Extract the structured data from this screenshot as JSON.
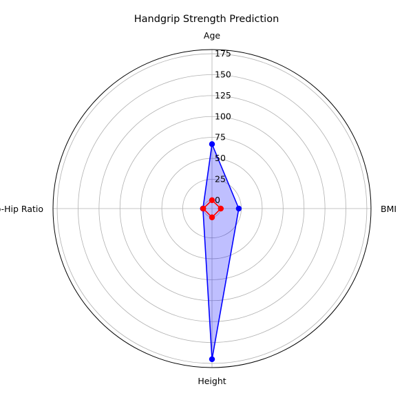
{
  "chart_data": {
    "type": "radar",
    "title": "Handgrip Strength Prediction",
    "axes": [
      "Age",
      "BMI",
      "Height",
      "Waist-to-Hip Ratio"
    ],
    "rlim": [
      -10,
      180
    ],
    "r_ticks": [
      0,
      25,
      50,
      75,
      100,
      125,
      150,
      175
    ],
    "r_tick_labels": [
      "0",
      "25",
      "50",
      "75",
      "100",
      "125",
      "150",
      "175"
    ],
    "grid": true,
    "series": [
      {
        "values": [
          67,
          22,
          170,
          0.85
        ],
        "line_color": "#0000ff",
        "marker_color": "#0000ff",
        "fill_color": "#0000ff",
        "fill_opacity": 0.25
      },
      {
        "values": [
          0,
          0.5,
          0.5,
          0.5
        ],
        "line_color": "#ff0000",
        "marker_color": "#ff0000",
        "fill_color": "none",
        "fill_opacity": 0
      }
    ]
  }
}
